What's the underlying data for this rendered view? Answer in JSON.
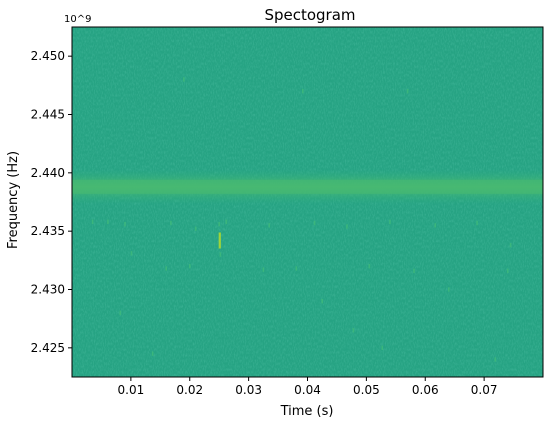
{
  "chart_data": {
    "type": "heatmap",
    "title": "Spectogram",
    "xlabel": "Time (s)",
    "ylabel": "Frequency (Hz)",
    "y_offset_label": "10^9",
    "xlim": [
      0.0,
      0.08
    ],
    "ylim": [
      2.4225,
      2.4525
    ],
    "y_scale": 1000000000.0,
    "x_ticks": [
      0.01,
      0.02,
      0.03,
      0.04,
      0.05,
      0.06,
      0.07
    ],
    "x_tick_labels": [
      "0.01",
      "0.02",
      "0.03",
      "0.04",
      "0.05",
      "0.06",
      "0.07"
    ],
    "y_ticks": [
      2.425,
      2.43,
      2.435,
      2.44,
      2.445,
      2.45
    ],
    "y_tick_labels": [
      "2.425",
      "2.430",
      "2.435",
      "2.440",
      "2.445",
      "2.450"
    ],
    "colormap": "viridis",
    "colors": {
      "background": "#26a383",
      "band": "#45b873",
      "band_peak": "#52bd6c",
      "speck": "#3db97a",
      "speck_bright": "#9fd43a"
    },
    "grid": false,
    "features": {
      "dominant_band_center_ghz": 2.4388,
      "dominant_band_halfwidth_ghz": 0.0006,
      "transient": {
        "x": 0.0251,
        "y": 2.4342
      },
      "specks": [
        {
          "x": 0.0035,
          "y": 2.4358
        },
        {
          "x": 0.0061,
          "y": 2.4358
        },
        {
          "x": 0.009,
          "y": 2.4356
        },
        {
          "x": 0.0168,
          "y": 2.4357
        },
        {
          "x": 0.021,
          "y": 2.4352
        },
        {
          "x": 0.0262,
          "y": 2.4358
        },
        {
          "x": 0.0335,
          "y": 2.4355
        },
        {
          "x": 0.0412,
          "y": 2.4357
        },
        {
          "x": 0.0467,
          "y": 2.4354
        },
        {
          "x": 0.054,
          "y": 2.4358
        },
        {
          "x": 0.0617,
          "y": 2.4355
        },
        {
          "x": 0.0688,
          "y": 2.4357
        },
        {
          "x": 0.0101,
          "y": 2.4331
        },
        {
          "x": 0.016,
          "y": 2.4318
        },
        {
          "x": 0.02,
          "y": 2.432
        },
        {
          "x": 0.0325,
          "y": 2.4317
        },
        {
          "x": 0.0381,
          "y": 2.4318
        },
        {
          "x": 0.0505,
          "y": 2.432
        },
        {
          "x": 0.0581,
          "y": 2.4316
        },
        {
          "x": 0.074,
          "y": 2.4316
        },
        {
          "x": 0.0082,
          "y": 2.428
        },
        {
          "x": 0.0137,
          "y": 2.4245
        },
        {
          "x": 0.0425,
          "y": 2.429
        },
        {
          "x": 0.0478,
          "y": 2.4265
        },
        {
          "x": 0.0392,
          "y": 2.447
        },
        {
          "x": 0.019,
          "y": 2.448
        },
        {
          "x": 0.064,
          "y": 2.43
        },
        {
          "x": 0.0719,
          "y": 2.424
        },
        {
          "x": 0.0252,
          "y": 2.433
        },
        {
          "x": 0.025,
          "y": 2.4356
        },
        {
          "x": 0.0527,
          "y": 2.425
        },
        {
          "x": 0.0745,
          "y": 2.4338
        },
        {
          "x": 0.057,
          "y": 2.447
        }
      ]
    }
  }
}
